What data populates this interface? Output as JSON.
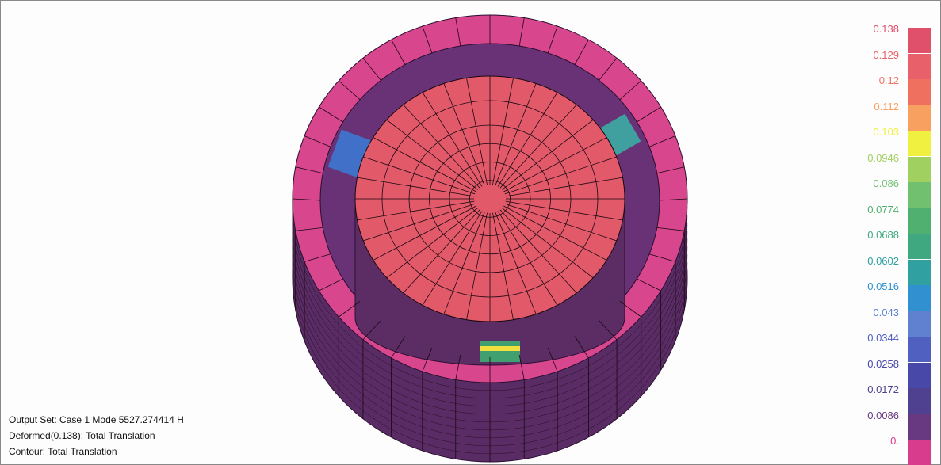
{
  "info": {
    "output_set": "Output Set: Case 1 Mode 5527.274414 H",
    "deformed": "Deformed(0.138): Total Translation",
    "contour": "Contour: Total Translation"
  },
  "legend": [
    {
      "label": "0.138",
      "color": "#e0506a"
    },
    {
      "label": "0.129",
      "color": "#e8606a"
    },
    {
      "label": "0.12",
      "color": "#f07060"
    },
    {
      "label": "0.112",
      "color": "#f8a060"
    },
    {
      "label": "0.103",
      "color": "#f0f040"
    },
    {
      "label": "0.0946",
      "color": "#a0d060"
    },
    {
      "label": "0.086",
      "color": "#70c070"
    },
    {
      "label": "0.0774",
      "color": "#50b070"
    },
    {
      "label": "0.0688",
      "color": "#40a880"
    },
    {
      "label": "0.0602",
      "color": "#30a0a0"
    },
    {
      "label": "0.0516",
      "color": "#3090d0"
    },
    {
      "label": "0.043",
      "color": "#6080d0"
    },
    {
      "label": "0.0344",
      "color": "#5060c0"
    },
    {
      "label": "0.0258",
      "color": "#4848a8"
    },
    {
      "label": "0.0172",
      "color": "#504090"
    },
    {
      "label": "0.0086",
      "color": "#683880"
    },
    {
      "label": "0.",
      "color": "#d83c8c"
    }
  ]
}
